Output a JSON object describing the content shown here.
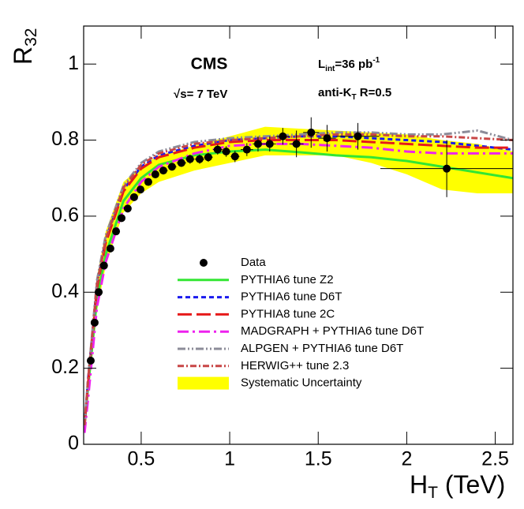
{
  "chart_data": {
    "type": "line",
    "y_label": [
      "R",
      "32"
    ],
    "x_label": [
      "H",
      "T",
      " (TeV)"
    ],
    "annotations": {
      "experiment": "CMS",
      "energy": "√s= 7 TeV",
      "lumi": [
        "L",
        "int",
        "=36 pb",
        "-1"
      ],
      "algo": [
        "anti-K",
        "T",
        " R=0.5"
      ]
    },
    "xlim": [
      0.175,
      2.6
    ],
    "ylim": [
      0,
      1.1
    ],
    "xticks": [
      0.5,
      1,
      1.5,
      2,
      2.5
    ],
    "yticks": [
      0,
      0.2,
      0.4,
      0.6,
      0.8,
      1
    ],
    "x": [
      0.18,
      0.2,
      0.25,
      0.3,
      0.4,
      0.5,
      0.6,
      0.8,
      1.0,
      1.2,
      1.4,
      1.6,
      1.8,
      2.0,
      2.2,
      2.4,
      2.6
    ],
    "points": {
      "name": "Data",
      "color": "#000000",
      "x": [
        0.215,
        0.237,
        0.26,
        0.29,
        0.326,
        0.358,
        0.389,
        0.424,
        0.46,
        0.496,
        0.54,
        0.58,
        0.625,
        0.674,
        0.727,
        0.776,
        0.83,
        0.879,
        0.932,
        0.98,
        1.03,
        1.097,
        1.16,
        1.226,
        1.3,
        1.377,
        1.46,
        1.55,
        1.724,
        2.226
      ],
      "values": [
        0.22,
        0.32,
        0.4,
        0.47,
        0.515,
        0.56,
        0.595,
        0.62,
        0.65,
        0.67,
        0.69,
        0.71,
        0.72,
        0.73,
        0.74,
        0.75,
        0.75,
        0.755,
        0.775,
        0.77,
        0.757,
        0.775,
        0.79,
        0.79,
        0.81,
        0.79,
        0.82,
        0.805,
        0.81,
        0.725
      ],
      "yerr": [
        0.01,
        0.01,
        0.01,
        0.01,
        0.01,
        0.01,
        0.01,
        0.01,
        0.01,
        0.01,
        0.01,
        0.01,
        0.01,
        0.01,
        0.01,
        0.012,
        0.012,
        0.012,
        0.013,
        0.014,
        0.015,
        0.017,
        0.02,
        0.02,
        0.022,
        0.035,
        0.04,
        0.035,
        0.035,
        0.075
      ],
      "xerr": [
        0.01,
        0.01,
        0.012,
        0.015,
        0.016,
        0.016,
        0.017,
        0.018,
        0.018,
        0.02,
        0.022,
        0.02,
        0.025,
        0.025,
        0.027,
        0.025,
        0.027,
        0.025,
        0.027,
        0.025,
        0.025,
        0.035,
        0.03,
        0.035,
        0.04,
        0.04,
        0.045,
        0.05,
        0.12,
        0.375
      ]
    },
    "series": [
      {
        "name": "PYTHIA6 tune Z2",
        "color": "#33e633",
        "values": [
          0.05,
          0.15,
          0.38,
          0.5,
          0.64,
          0.7,
          0.735,
          0.76,
          0.77,
          0.775,
          0.768,
          0.76,
          0.755,
          0.745,
          0.73,
          0.715,
          0.7
        ]
      },
      {
        "name": "PYTHIA6 tune D6T",
        "color": "#1a1aee",
        "values": [
          0.05,
          0.17,
          0.42,
          0.54,
          0.67,
          0.73,
          0.76,
          0.785,
          0.8,
          0.805,
          0.81,
          0.81,
          0.805,
          0.8,
          0.795,
          0.785,
          0.775
        ]
      },
      {
        "name": "PYTHIA8 tune 2C",
        "color": "#e61a1a",
        "values": [
          0.05,
          0.16,
          0.41,
          0.53,
          0.665,
          0.725,
          0.755,
          0.78,
          0.795,
          0.8,
          0.8,
          0.8,
          0.795,
          0.79,
          0.785,
          0.78,
          0.78
        ]
      },
      {
        "name": "MADGRAPH + PYTHIA6 tune D6T",
        "color": "#ee22ee",
        "values": [
          0.03,
          0.12,
          0.36,
          0.48,
          0.62,
          0.69,
          0.73,
          0.765,
          0.785,
          0.79,
          0.79,
          0.785,
          0.78,
          0.77,
          0.765,
          0.765,
          0.765
        ]
      },
      {
        "name": "ALPGEN + PYTHIA6 tune D6T",
        "color": "#8c8c99",
        "values": [
          0.05,
          0.17,
          0.43,
          0.55,
          0.68,
          0.74,
          0.77,
          0.795,
          0.805,
          0.81,
          0.815,
          0.82,
          0.82,
          0.815,
          0.815,
          0.825,
          0.8
        ]
      },
      {
        "name": "HERWIG++ tune 2.3",
        "color": "#c84646",
        "values": [
          0.05,
          0.17,
          0.42,
          0.54,
          0.675,
          0.735,
          0.765,
          0.79,
          0.8,
          0.805,
          0.81,
          0.815,
          0.815,
          0.81,
          0.81,
          0.805,
          0.8
        ]
      }
    ],
    "band": {
      "name": "Systematic Uncertainty",
      "color": "#ffff00",
      "lower": [
        0.03,
        0.12,
        0.35,
        0.47,
        0.61,
        0.66,
        0.69,
        0.72,
        0.74,
        0.76,
        0.76,
        0.76,
        0.74,
        0.71,
        0.67,
        0.66,
        0.66
      ],
      "upper": [
        0.06,
        0.2,
        0.44,
        0.56,
        0.69,
        0.73,
        0.76,
        0.785,
        0.81,
        0.835,
        0.83,
        0.825,
        0.82,
        0.815,
        0.8,
        0.79,
        0.77
      ]
    }
  }
}
